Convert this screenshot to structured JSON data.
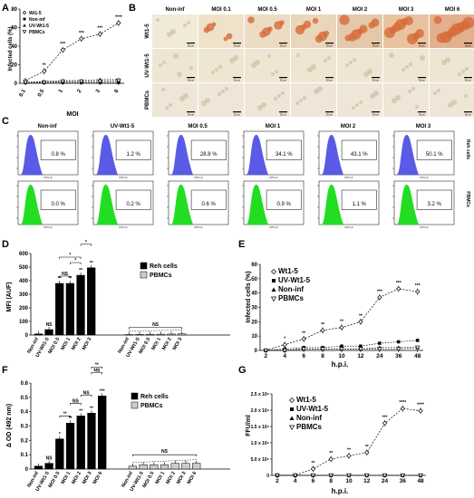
{
  "panels": {
    "A": {
      "letter": "A",
      "ylabel": "Infected cells (%)",
      "xlabel": "MOI",
      "legend": [
        "Wt1-5",
        "Non-inf",
        "UV-Wt1-5",
        "PBMCs"
      ],
      "sig": [
        "**",
        "***",
        "***",
        "***",
        "****"
      ]
    },
    "B": {
      "letter": "B",
      "columns": [
        "Non-inf",
        "MOI 0.1",
        "MOI 0.5",
        "MOI 1",
        "MOI 2",
        "MOI 3",
        "MOI 6"
      ],
      "rows": [
        "Wt1-5",
        "UV-Wt1-5",
        "PBMCs"
      ],
      "scale_label": "50 μm"
    },
    "C": {
      "letter": "C",
      "columns": [
        "Non-inf",
        "UV-Wt1-5",
        "MOI 0.5",
        "MOI 1",
        "MOI 2",
        "MOI 3"
      ],
      "row_labels": [
        "Reh cells",
        "PBMCs"
      ],
      "reh_pct": [
        "0.8 %",
        "1.2 %",
        "28.8 %",
        "34.1 %",
        "43.1 %",
        "50.1 %"
      ],
      "pbmc_pct": [
        "0.0 %",
        "0.2 %",
        "0.6 %",
        "0.9 %",
        "1.1 %",
        "3.2 %"
      ],
      "axis_label": "FITC-A",
      "colors": {
        "reh": "#5a5ae6",
        "pbmc": "#22dd22"
      }
    },
    "D": {
      "letter": "D",
      "ylabel": "MFI (AUF)",
      "legend": [
        "Reh cells",
        "PBMCs"
      ],
      "reh_sig": [
        "NS",
        "**",
        "**",
        "**",
        "**"
      ],
      "top_sig": [
        "NS",
        "*",
        "*",
        "*"
      ],
      "pbmc_sig": "NS"
    },
    "E": {
      "letter": "E",
      "ylabel": "Infected cells (%)",
      "xlabel": "h.p.i.",
      "legend": [
        "Wt1-5",
        "UV-Wt1-5",
        "Non-inf",
        "PBMCs"
      ],
      "sig": [
        "*",
        "**",
        "**",
        "**",
        "**",
        "***",
        "***",
        "***"
      ]
    },
    "F": {
      "letter": "F",
      "ylabel": "Δ OD (492 nm)",
      "legend": [
        "Reh cells",
        "PBMCs"
      ],
      "reh_sig": [
        "NS",
        "*",
        "**",
        "**",
        "**",
        "***"
      ],
      "top_sig": [
        "**",
        "NS",
        "NS",
        "NS",
        "**"
      ],
      "pbmc_sig": "NS"
    },
    "G": {
      "letter": "G",
      "ylabel": "FFU/ml",
      "xlabel": "h.p.i.",
      "legend": [
        "Wt1-5",
        "UV-Wt1-5",
        "Non-inf",
        "PBMCs"
      ],
      "sig": [
        "**",
        "**",
        "**",
        "**",
        "***",
        "****",
        "****",
        "****"
      ]
    }
  },
  "chart_data": [
    {
      "id": "A",
      "type": "line",
      "categories": [
        "0.1",
        "0.5",
        "1",
        "2",
        "3",
        "6"
      ],
      "ylim": [
        0,
        80
      ],
      "yticks": [
        0,
        20,
        40,
        60,
        80
      ],
      "series": [
        {
          "name": "Wt1-5",
          "values": [
            3,
            13,
            36,
            48,
            53,
            65
          ]
        },
        {
          "name": "Non-inf",
          "values": [
            1,
            1,
            1,
            1,
            1,
            1
          ]
        },
        {
          "name": "UV-Wt1-5",
          "values": [
            1,
            2,
            3,
            3,
            4,
            4
          ]
        },
        {
          "name": "PBMCs",
          "values": [
            1,
            1,
            2,
            2,
            2,
            3
          ]
        }
      ]
    },
    {
      "id": "D",
      "type": "bar",
      "categories": [
        "Non-inf",
        "UV-Wt1-5",
        "MOI 0.5",
        "MOI 1",
        "MOI 2",
        "MOI 3"
      ],
      "ylim": [
        0,
        600
      ],
      "yticks": [
        0,
        100,
        200,
        300,
        400,
        500,
        600
      ],
      "series": [
        {
          "name": "Reh cells",
          "values": [
            8,
            40,
            380,
            380,
            440,
            495
          ]
        },
        {
          "name": "PBMCs",
          "values": [
            3,
            4,
            5,
            6,
            7,
            9
          ]
        }
      ]
    },
    {
      "id": "E",
      "type": "line",
      "categories": [
        "2",
        "4",
        "6",
        "8",
        "10",
        "12",
        "24",
        "36",
        "48"
      ],
      "ylim": [
        0,
        60
      ],
      "yticks": [
        0,
        10,
        20,
        30,
        40,
        50,
        60
      ],
      "series": [
        {
          "name": "Wt1-5",
          "values": [
            0,
            4,
            8,
            14,
            16,
            20,
            37,
            43,
            41
          ]
        },
        {
          "name": "UV-Wt1-5",
          "values": [
            0,
            1,
            2,
            2,
            3,
            3,
            5,
            6,
            7
          ]
        },
        {
          "name": "Non-inf",
          "values": [
            0,
            0,
            1,
            1,
            1,
            1,
            2,
            2,
            2
          ]
        },
        {
          "name": "PBMCs",
          "values": [
            0,
            0,
            1,
            1,
            1,
            1,
            1,
            1,
            2
          ]
        }
      ]
    },
    {
      "id": "F",
      "type": "bar",
      "categories": [
        "Non-inf",
        "UV-Wt1-5",
        "MOI 0.5",
        "MOI 1",
        "MOI 2",
        "MOI 3",
        "MOI 6"
      ],
      "ylim": [
        0,
        0.6
      ],
      "yticks": [
        0,
        0.1,
        0.2,
        0.3,
        0.4,
        0.5,
        0.6
      ],
      "series": [
        {
          "name": "Reh cells",
          "values": [
            0.02,
            0.04,
            0.21,
            0.32,
            0.37,
            0.39,
            0.51
          ]
        },
        {
          "name": "PBMCs",
          "values": [
            0.02,
            0.03,
            0.03,
            0.03,
            0.04,
            0.04,
            0.04
          ]
        }
      ]
    },
    {
      "id": "G",
      "type": "line",
      "categories": [
        "2",
        "4",
        "6",
        "8",
        "10",
        "12",
        "24",
        "36",
        "48"
      ],
      "ylim": [
        0,
        2500000
      ],
      "yticks": [
        "0",
        "5.0 x 10⁵",
        "1.0 x 10⁶",
        "1.5 x 10⁶",
        "2.0 x 10⁶",
        "2.5 x 10⁶"
      ],
      "series": [
        {
          "name": "Wt1-5",
          "values": [
            0,
            0,
            200000,
            500000,
            600000,
            700000,
            1600000,
            2050000,
            1980000
          ]
        },
        {
          "name": "UV-Wt1-5",
          "values": [
            0,
            0,
            0,
            0,
            0,
            0,
            0,
            0,
            0
          ]
        },
        {
          "name": "Non-inf",
          "values": [
            0,
            0,
            0,
            0,
            0,
            0,
            0,
            0,
            0
          ]
        },
        {
          "name": "PBMCs",
          "values": [
            0,
            0,
            0,
            0,
            0,
            0,
            0,
            0,
            0
          ]
        }
      ]
    }
  ]
}
